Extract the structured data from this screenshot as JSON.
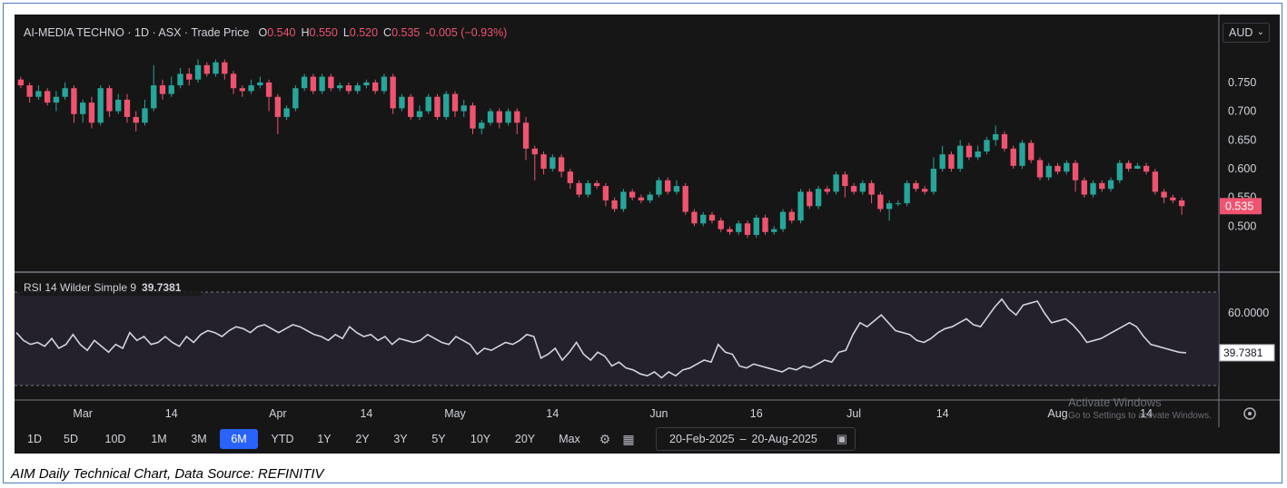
{
  "header": {
    "symbol": "AI-MEDIA TECHNO",
    "interval": "1D",
    "exchange": "ASX",
    "price_type": "Trade Price",
    "o_label": "O",
    "o_val": "0.540",
    "h_label": "H",
    "h_val": "0.550",
    "l_label": "L",
    "l_val": "0.520",
    "c_label": "C",
    "c_val": "0.535",
    "change": "-0.005 (−0.93%)",
    "currency": "AUD"
  },
  "rsi_header": {
    "label": "RSI 14 Wilder Simple 9",
    "value": "39.7381"
  },
  "colors": {
    "up": "#26a69a",
    "down": "#ef5370",
    "rsi_line": "#d1d4dc",
    "active_tab": "#2962ff",
    "bg": "#161616"
  },
  "toolbar": {
    "timeframes": [
      "1D",
      "5D",
      "10D",
      "1M",
      "3M",
      "6M",
      "YTD",
      "1Y",
      "2Y",
      "3Y",
      "5Y",
      "10Y",
      "20Y",
      "Max"
    ],
    "active": "6M",
    "settings_icon": "gear-icon",
    "table_icon": "table-icon",
    "date_from": "20-Feb-2025",
    "date_sep": "–",
    "date_to": "20-Aug-2025",
    "calendar_icon": "calendar-icon"
  },
  "watermark": {
    "line1": "Activate Windows",
    "line2": "Go to Settings to activate Windows."
  },
  "caption": "AIM Daily Technical Chart, Data Source: REFINITIV",
  "chart_data": [
    {
      "type": "candlestick",
      "title": "AI-MEDIA TECHNO · 1D · ASX · Trade Price",
      "x_tick_labels": [
        "Mar",
        "14",
        "Apr",
        "14",
        "May",
        "14",
        "Jun",
        "16",
        "Jul",
        "14",
        "Aug",
        "14"
      ],
      "y_tick_labels": [
        "0.750",
        "0.700",
        "0.650",
        "0.600",
        "0.550",
        "0.500"
      ],
      "ylim": [
        0.455,
        0.805
      ],
      "last_price_label": "0.535",
      "candles": [
        [
          0.755,
          0.745,
          0.76,
          0.74
        ],
        [
          0.745,
          0.725,
          0.75,
          0.715
        ],
        [
          0.725,
          0.735,
          0.745,
          0.72
        ],
        [
          0.735,
          0.715,
          0.74,
          0.71
        ],
        [
          0.715,
          0.725,
          0.735,
          0.7
        ],
        [
          0.725,
          0.74,
          0.75,
          0.72
        ],
        [
          0.74,
          0.695,
          0.745,
          0.68
        ],
        [
          0.695,
          0.715,
          0.72,
          0.68
        ],
        [
          0.715,
          0.68,
          0.725,
          0.67
        ],
        [
          0.68,
          0.74,
          0.745,
          0.675
        ],
        [
          0.74,
          0.7,
          0.745,
          0.69
        ],
        [
          0.7,
          0.72,
          0.73,
          0.695
        ],
        [
          0.72,
          0.69,
          0.73,
          0.68
        ],
        [
          0.69,
          0.68,
          0.7,
          0.665
        ],
        [
          0.68,
          0.705,
          0.72,
          0.675
        ],
        [
          0.705,
          0.745,
          0.78,
          0.7
        ],
        [
          0.745,
          0.73,
          0.755,
          0.72
        ],
        [
          0.73,
          0.745,
          0.76,
          0.725
        ],
        [
          0.745,
          0.765,
          0.775,
          0.74
        ],
        [
          0.765,
          0.755,
          0.775,
          0.745
        ],
        [
          0.755,
          0.78,
          0.79,
          0.75
        ],
        [
          0.78,
          0.765,
          0.785,
          0.76
        ],
        [
          0.765,
          0.785,
          0.79,
          0.76
        ],
        [
          0.785,
          0.765,
          0.79,
          0.755
        ],
        [
          0.765,
          0.74,
          0.77,
          0.73
        ],
        [
          0.74,
          0.735,
          0.745,
          0.725
        ],
        [
          0.735,
          0.745,
          0.755,
          0.73
        ],
        [
          0.745,
          0.75,
          0.76,
          0.74
        ],
        [
          0.75,
          0.725,
          0.755,
          0.7
        ],
        [
          0.725,
          0.69,
          0.73,
          0.66
        ],
        [
          0.69,
          0.705,
          0.71,
          0.685
        ],
        [
          0.705,
          0.74,
          0.745,
          0.7
        ],
        [
          0.74,
          0.76,
          0.765,
          0.735
        ],
        [
          0.76,
          0.735,
          0.765,
          0.73
        ],
        [
          0.735,
          0.76,
          0.765,
          0.73
        ],
        [
          0.76,
          0.74,
          0.765,
          0.735
        ],
        [
          0.74,
          0.745,
          0.75,
          0.735
        ],
        [
          0.745,
          0.735,
          0.75,
          0.73
        ],
        [
          0.735,
          0.745,
          0.75,
          0.73
        ],
        [
          0.745,
          0.75,
          0.755,
          0.74
        ],
        [
          0.75,
          0.735,
          0.755,
          0.73
        ],
        [
          0.735,
          0.76,
          0.765,
          0.73
        ],
        [
          0.76,
          0.705,
          0.765,
          0.695
        ],
        [
          0.705,
          0.725,
          0.73,
          0.7
        ],
        [
          0.725,
          0.69,
          0.73,
          0.685
        ],
        [
          0.69,
          0.7,
          0.71,
          0.685
        ],
        [
          0.7,
          0.725,
          0.73,
          0.695
        ],
        [
          0.725,
          0.69,
          0.73,
          0.685
        ],
        [
          0.69,
          0.73,
          0.735,
          0.685
        ],
        [
          0.73,
          0.7,
          0.735,
          0.69
        ],
        [
          0.7,
          0.71,
          0.72,
          0.69
        ],
        [
          0.71,
          0.67,
          0.715,
          0.66
        ],
        [
          0.67,
          0.68,
          0.685,
          0.66
        ],
        [
          0.68,
          0.7,
          0.705,
          0.675
        ],
        [
          0.7,
          0.68,
          0.705,
          0.67
        ],
        [
          0.68,
          0.7,
          0.705,
          0.675
        ],
        [
          0.7,
          0.68,
          0.705,
          0.66
        ],
        [
          0.68,
          0.635,
          0.69,
          0.615
        ],
        [
          0.635,
          0.625,
          0.64,
          0.58
        ],
        [
          0.625,
          0.6,
          0.63,
          0.59
        ],
        [
          0.6,
          0.62,
          0.625,
          0.595
        ],
        [
          0.62,
          0.595,
          0.625,
          0.585
        ],
        [
          0.595,
          0.575,
          0.6,
          0.565
        ],
        [
          0.575,
          0.555,
          0.58,
          0.55
        ],
        [
          0.555,
          0.575,
          0.58,
          0.55
        ],
        [
          0.575,
          0.57,
          0.58,
          0.565
        ],
        [
          0.57,
          0.545,
          0.575,
          0.535
        ],
        [
          0.545,
          0.53,
          0.55,
          0.525
        ],
        [
          0.53,
          0.56,
          0.565,
          0.525
        ],
        [
          0.56,
          0.55,
          0.565,
          0.545
        ],
        [
          0.55,
          0.545,
          0.555,
          0.54
        ],
        [
          0.545,
          0.555,
          0.56,
          0.54
        ],
        [
          0.555,
          0.58,
          0.585,
          0.55
        ],
        [
          0.58,
          0.56,
          0.585,
          0.555
        ],
        [
          0.56,
          0.57,
          0.58,
          0.555
        ],
        [
          0.57,
          0.525,
          0.575,
          0.52
        ],
        [
          0.525,
          0.505,
          0.53,
          0.5
        ],
        [
          0.505,
          0.52,
          0.525,
          0.5
        ],
        [
          0.52,
          0.51,
          0.525,
          0.505
        ],
        [
          0.51,
          0.495,
          0.515,
          0.49
        ],
        [
          0.495,
          0.49,
          0.5,
          0.485
        ],
        [
          0.49,
          0.505,
          0.51,
          0.485
        ],
        [
          0.505,
          0.485,
          0.51,
          0.48
        ],
        [
          0.485,
          0.515,
          0.52,
          0.48
        ],
        [
          0.515,
          0.49,
          0.52,
          0.485
        ],
        [
          0.49,
          0.495,
          0.5,
          0.485
        ],
        [
          0.495,
          0.525,
          0.53,
          0.49
        ],
        [
          0.525,
          0.51,
          0.53,
          0.505
        ],
        [
          0.51,
          0.56,
          0.565,
          0.505
        ],
        [
          0.56,
          0.535,
          0.565,
          0.53
        ],
        [
          0.535,
          0.565,
          0.57,
          0.53
        ],
        [
          0.565,
          0.56,
          0.57,
          0.555
        ],
        [
          0.56,
          0.59,
          0.595,
          0.555
        ],
        [
          0.59,
          0.57,
          0.595,
          0.55
        ],
        [
          0.57,
          0.56,
          0.575,
          0.555
        ],
        [
          0.56,
          0.575,
          0.58,
          0.555
        ],
        [
          0.575,
          0.555,
          0.58,
          0.54
        ],
        [
          0.555,
          0.53,
          0.56,
          0.525
        ],
        [
          0.53,
          0.54,
          0.545,
          0.51
        ],
        [
          0.54,
          0.54,
          0.545,
          0.535
        ],
        [
          0.54,
          0.575,
          0.58,
          0.535
        ],
        [
          0.575,
          0.565,
          0.58,
          0.56
        ],
        [
          0.565,
          0.56,
          0.57,
          0.555
        ],
        [
          0.56,
          0.6,
          0.62,
          0.555
        ],
        [
          0.6,
          0.625,
          0.64,
          0.595
        ],
        [
          0.625,
          0.6,
          0.63,
          0.595
        ],
        [
          0.6,
          0.64,
          0.65,
          0.595
        ],
        [
          0.64,
          0.62,
          0.645,
          0.615
        ],
        [
          0.62,
          0.63,
          0.64,
          0.615
        ],
        [
          0.63,
          0.65,
          0.655,
          0.625
        ],
        [
          0.65,
          0.66,
          0.675,
          0.64
        ],
        [
          0.66,
          0.635,
          0.665,
          0.63
        ],
        [
          0.635,
          0.605,
          0.64,
          0.6
        ],
        [
          0.605,
          0.645,
          0.65,
          0.6
        ],
        [
          0.645,
          0.615,
          0.65,
          0.61
        ],
        [
          0.615,
          0.585,
          0.62,
          0.58
        ],
        [
          0.585,
          0.605,
          0.61,
          0.58
        ],
        [
          0.605,
          0.595,
          0.61,
          0.59
        ],
        [
          0.595,
          0.61,
          0.615,
          0.59
        ],
        [
          0.61,
          0.58,
          0.615,
          0.56
        ],
        [
          0.58,
          0.555,
          0.585,
          0.55
        ],
        [
          0.555,
          0.575,
          0.58,
          0.55
        ],
        [
          0.575,
          0.565,
          0.58,
          0.56
        ],
        [
          0.565,
          0.58,
          0.585,
          0.56
        ],
        [
          0.58,
          0.61,
          0.615,
          0.575
        ],
        [
          0.61,
          0.6,
          0.615,
          0.595
        ],
        [
          0.6,
          0.605,
          0.61,
          0.6
        ],
        [
          0.605,
          0.595,
          0.61,
          0.59
        ],
        [
          0.595,
          0.56,
          0.6,
          0.555
        ],
        [
          0.56,
          0.55,
          0.565,
          0.54
        ],
        [
          0.55,
          0.545,
          0.555,
          0.54
        ],
        [
          0.545,
          0.535,
          0.55,
          0.52
        ]
      ]
    },
    {
      "type": "line",
      "title": "RSI 14 Wilder Simple 9",
      "y_tick_labels": [
        "60.0000"
      ],
      "ylim": [
        18,
        78
      ],
      "guide_levels": [
        70,
        30
      ],
      "last_value_label": "39.7381",
      "series": [
        {
          "name": "RSI 14",
          "values": [
            50,
            46,
            44,
            45,
            43,
            47,
            42,
            44,
            49,
            44,
            41,
            46,
            43,
            40,
            44,
            42,
            50,
            46,
            48,
            44,
            45,
            48,
            45,
            43,
            48,
            45,
            49,
            51,
            50,
            48,
            51,
            53,
            52,
            50,
            53,
            54,
            52,
            50,
            52,
            54,
            53,
            51,
            49,
            48,
            46,
            49,
            47,
            53,
            50,
            48,
            49,
            46,
            48,
            44,
            47,
            46,
            45,
            46,
            49,
            47,
            45,
            44,
            48,
            46,
            44,
            39,
            42,
            41,
            43,
            45,
            44,
            46,
            49,
            48,
            37,
            39,
            42,
            36,
            40,
            45,
            39,
            36,
            40,
            38,
            33,
            35,
            32,
            31,
            29,
            28,
            30,
            27,
            30,
            28,
            31,
            32,
            34,
            36,
            35,
            44,
            40,
            39,
            33,
            32,
            34,
            33,
            32,
            31,
            30,
            32,
            31,
            33,
            32,
            34,
            36,
            35,
            40,
            41,
            49,
            55,
            53,
            56,
            59,
            55,
            51,
            50,
            49,
            46,
            45,
            47,
            50,
            52,
            53,
            55,
            57,
            54,
            53,
            58,
            63,
            67,
            62,
            59,
            64,
            65,
            66,
            60,
            55,
            56,
            57,
            54,
            50,
            45,
            46,
            47,
            49,
            51,
            53,
            55,
            53,
            48,
            44,
            43,
            42,
            41,
            40,
            39.7381
          ]
        }
      ]
    }
  ]
}
